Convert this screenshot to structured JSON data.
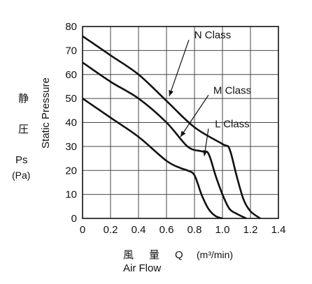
{
  "chart_data": {
    "type": "line",
    "title": "",
    "xlabel_cjk": [
      "風",
      "量"
    ],
    "xlabel_symbol": "Q",
    "xlabel_unit": "(m³/min)",
    "xlabel_en": "Air Flow",
    "ylabel_cjk": [
      "静",
      "圧"
    ],
    "ylabel_symbol": "Ps",
    "ylabel_unit": "(Pa)",
    "ylabel_en": "Static Pressure",
    "xlim": [
      0,
      1.4
    ],
    "ylim": [
      0,
      80
    ],
    "x_ticks": [
      "0",
      "0.2",
      "0.4",
      "0.6",
      "0.8",
      "1.0",
      "1.2",
      "1.4"
    ],
    "y_ticks": [
      "0",
      "10",
      "20",
      "30",
      "40",
      "50",
      "60",
      "70",
      "80"
    ],
    "grid": true,
    "series": [
      {
        "name": "N Class",
        "points": [
          [
            0,
            76
          ],
          [
            0.2,
            68
          ],
          [
            0.4,
            60
          ],
          [
            0.6,
            49
          ],
          [
            0.8,
            38
          ],
          [
            1.0,
            31
          ],
          [
            1.05,
            29
          ],
          [
            1.1,
            18
          ],
          [
            1.15,
            8
          ],
          [
            1.2,
            3
          ],
          [
            1.27,
            0
          ]
        ]
      },
      {
        "name": "M Class",
        "points": [
          [
            0,
            65
          ],
          [
            0.2,
            57
          ],
          [
            0.4,
            50
          ],
          [
            0.6,
            40
          ],
          [
            0.75,
            30
          ],
          [
            0.85,
            28
          ],
          [
            0.9,
            27
          ],
          [
            0.95,
            18
          ],
          [
            1.0,
            10
          ],
          [
            1.05,
            4
          ],
          [
            1.1,
            2
          ],
          [
            1.17,
            0
          ]
        ]
      },
      {
        "name": "L Class",
        "points": [
          [
            0,
            50
          ],
          [
            0.2,
            42
          ],
          [
            0.4,
            34
          ],
          [
            0.6,
            24
          ],
          [
            0.7,
            21
          ],
          [
            0.75,
            20
          ],
          [
            0.8,
            18
          ],
          [
            0.85,
            10
          ],
          [
            0.9,
            4
          ],
          [
            0.95,
            1
          ],
          [
            1.0,
            0
          ]
        ]
      }
    ],
    "annotations": [
      {
        "text": "N Class",
        "x": 0.93,
        "y": 75,
        "arrow_to": [
          0.62,
          51
        ]
      },
      {
        "text": "M Class",
        "x": 1.07,
        "y": 52,
        "arrow_to": [
          0.7,
          34
        ]
      },
      {
        "text": "L Class",
        "x": 1.07,
        "y": 38,
        "arrow_to": [
          0.87,
          26
        ]
      }
    ]
  }
}
